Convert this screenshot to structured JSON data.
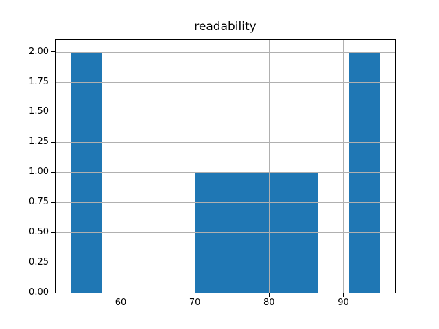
{
  "chart_data": {
    "type": "bar",
    "subtype": "histogram",
    "title": "readability",
    "xlabel": "",
    "ylabel": "",
    "xlim": [
      51.22,
      96.98
    ],
    "ylim": [
      0,
      2.1
    ],
    "grid": true,
    "legend": null,
    "colors": {
      "bar": "#1f77b4",
      "grid": "#b0b0b0",
      "spine": "#000000",
      "text": "#000000",
      "background": "#ffffff"
    },
    "xticks": [
      {
        "v": 60,
        "label": "60"
      },
      {
        "v": 70,
        "label": "70"
      },
      {
        "v": 80,
        "label": "80"
      },
      {
        "v": 90,
        "label": "90"
      }
    ],
    "yticks": [
      {
        "v": 0.0,
        "label": "0.00"
      },
      {
        "v": 0.25,
        "label": "0.25"
      },
      {
        "v": 0.5,
        "label": "0.50"
      },
      {
        "v": 0.75,
        "label": "0.75"
      },
      {
        "v": 1.0,
        "label": "1.00"
      },
      {
        "v": 1.25,
        "label": "1.25"
      },
      {
        "v": 1.5,
        "label": "1.50"
      },
      {
        "v": 1.75,
        "label": "1.75"
      },
      {
        "v": 2.0,
        "label": "2.00"
      }
    ],
    "bin_edges_approx": [
      53.3,
      57.46,
      61.62,
      65.78,
      69.94,
      74.1,
      78.26,
      82.42,
      86.58,
      90.74,
      94.9
    ],
    "bin_counts": [
      2,
      0,
      0,
      0,
      1,
      1,
      1,
      1,
      0,
      2
    ],
    "bars": [
      {
        "x0": 53.3,
        "x1": 57.46,
        "count": 2
      },
      {
        "x0": 69.94,
        "x1": 86.58,
        "count": 1
      },
      {
        "x0": 90.74,
        "x1": 94.9,
        "count": 2
      }
    ]
  }
}
